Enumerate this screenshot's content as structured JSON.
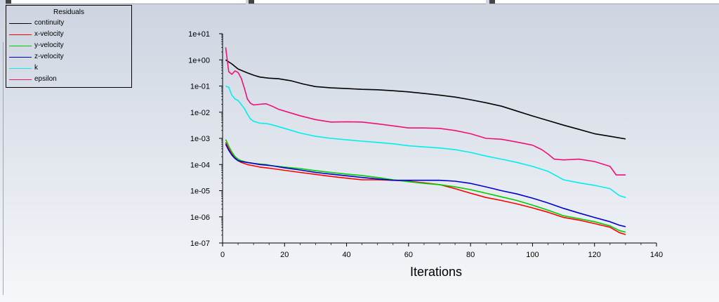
{
  "chart_data": {
    "type": "line",
    "title": "",
    "xlabel": "Iterations",
    "ylabel": "",
    "yscale": "log",
    "xlim": [
      0,
      140
    ],
    "ylim": [
      1e-07,
      10
    ],
    "x_ticks": [
      "0",
      "20",
      "40",
      "60",
      "80",
      "100",
      "120",
      "140"
    ],
    "y_ticks": [
      "1e+01",
      "1e+00",
      "1e-01",
      "1e-02",
      "1e-03",
      "1e-04",
      "1e-05",
      "1e-06",
      "1e-07"
    ],
    "legend": {
      "title": "Residuals",
      "placement": "top-left"
    },
    "series": [
      {
        "name": "continuity",
        "color": "#000000",
        "x": [
          1,
          3,
          5,
          8,
          10,
          12,
          15,
          18,
          22,
          26,
          30,
          35,
          40,
          45,
          50,
          55,
          60,
          65,
          70,
          75,
          80,
          85,
          90,
          95,
          100,
          105,
          110,
          115,
          120,
          125,
          130
        ],
        "y": [
          1.0,
          0.7,
          0.45,
          0.32,
          0.26,
          0.22,
          0.2,
          0.19,
          0.16,
          0.12,
          0.095,
          0.085,
          0.08,
          0.075,
          0.072,
          0.066,
          0.06,
          0.052,
          0.045,
          0.038,
          0.03,
          0.023,
          0.017,
          0.011,
          0.0072,
          0.0048,
          0.0032,
          0.0022,
          0.0015,
          0.0012,
          0.00095
        ]
      },
      {
        "name": "x-velocity",
        "color": "#ff0000",
        "x": [
          1,
          2,
          3,
          4,
          5,
          6,
          8,
          10,
          12,
          14,
          16,
          20,
          25,
          30,
          35,
          40,
          45,
          50,
          55,
          60,
          65,
          70,
          75,
          80,
          85,
          90,
          95,
          100,
          105,
          110,
          115,
          120,
          125,
          128,
          130
        ],
        "y": [
          0.0007,
          0.0004,
          0.00025,
          0.00018,
          0.00014,
          0.00012,
          0.0001,
          9e-05,
          8e-05,
          7.5e-05,
          7e-05,
          6e-05,
          5e-05,
          4.2e-05,
          3.5e-05,
          3e-05,
          2.6e-05,
          2.6e-05,
          2.5e-05,
          2.3e-05,
          2e-05,
          1.7e-05,
          1.2e-05,
          8e-06,
          5.5e-06,
          4.2e-06,
          3.1e-06,
          2.2e-06,
          1.5e-06,
          9.5e-07,
          7.5e-07,
          5.5e-07,
          4e-07,
          2.5e-07,
          2.1e-07
        ]
      },
      {
        "name": "y-velocity",
        "color": "#00cc00",
        "x": [
          1,
          2,
          3,
          4,
          5,
          6,
          8,
          10,
          12,
          14,
          16,
          20,
          25,
          30,
          35,
          40,
          45,
          50,
          55,
          60,
          65,
          70,
          75,
          80,
          85,
          90,
          95,
          100,
          105,
          110,
          115,
          120,
          125,
          128,
          130
        ],
        "y": [
          0.0009,
          0.0005,
          0.0003,
          0.0002,
          0.00016,
          0.00014,
          0.00012,
          0.00011,
          0.000105,
          0.0001,
          9e-05,
          8e-05,
          7e-05,
          5.8e-05,
          5e-05,
          4.3e-05,
          3.8e-05,
          3.2e-05,
          2.6e-05,
          2.2e-05,
          1.9e-05,
          1.7e-05,
          1.4e-05,
          1.1e-05,
          8e-06,
          5.8e-06,
          4.2e-06,
          2.8e-06,
          1.8e-06,
          1.1e-06,
          8.5e-07,
          6.5e-07,
          4.5e-07,
          3e-07,
          2.6e-07
        ]
      },
      {
        "name": "z-velocity",
        "color": "#0000cc",
        "x": [
          1,
          2,
          3,
          4,
          5,
          6,
          8,
          10,
          12,
          14,
          16,
          20,
          25,
          30,
          35,
          40,
          45,
          50,
          55,
          60,
          65,
          70,
          75,
          80,
          85,
          90,
          95,
          100,
          105,
          110,
          115,
          120,
          125,
          128,
          130
        ],
        "y": [
          0.0006,
          0.00035,
          0.00023,
          0.00017,
          0.00014,
          0.00013,
          0.00012,
          0.00011,
          0.0001,
          9.5e-05,
          9e-05,
          7.5e-05,
          6.2e-05,
          5e-05,
          4.3e-05,
          3.7e-05,
          3.2e-05,
          2.8e-05,
          2.5e-05,
          2.5e-05,
          2.5e-05,
          2.5e-05,
          2.3e-05,
          1.9e-05,
          1.4e-05,
          1e-05,
          7.5e-06,
          5.2e-06,
          3.4e-06,
          2.1e-06,
          1.4e-06,
          9.5e-07,
          6.5e-07,
          4.8e-07,
          4.2e-07
        ]
      },
      {
        "name": "k",
        "color": "#00eeee",
        "x": [
          1,
          2,
          3,
          4,
          5,
          6,
          7,
          8,
          9,
          10,
          12,
          14,
          16,
          20,
          25,
          30,
          35,
          40,
          45,
          50,
          55,
          60,
          65,
          70,
          75,
          80,
          85,
          90,
          95,
          100,
          105,
          110,
          115,
          120,
          125,
          128,
          130
        ],
        "y": [
          0.1,
          0.09,
          0.045,
          0.032,
          0.028,
          0.02,
          0.014,
          0.0085,
          0.0055,
          0.0045,
          0.0038,
          0.0037,
          0.0033,
          0.0024,
          0.0016,
          0.0012,
          0.001,
          0.00088,
          0.00078,
          0.0007,
          0.00062,
          0.00052,
          0.00047,
          0.00043,
          0.00037,
          0.00029,
          0.00021,
          0.00016,
          0.00012,
          8.5e-05,
          5.5e-05,
          2.6e-05,
          2e-05,
          1.6e-05,
          1.2e-05,
          6.5e-06,
          5.5e-06
        ]
      },
      {
        "name": "epsilon",
        "color": "#ee1177",
        "x": [
          1,
          2,
          3,
          4,
          5,
          6,
          7,
          8,
          9,
          10,
          12,
          14,
          16,
          18,
          20,
          25,
          30,
          35,
          40,
          45,
          50,
          55,
          60,
          65,
          70,
          75,
          80,
          85,
          90,
          95,
          100,
          103,
          105,
          107,
          110,
          115,
          120,
          125,
          127,
          130
        ],
        "y": [
          3.0,
          0.35,
          0.28,
          0.38,
          0.33,
          0.2,
          0.085,
          0.032,
          0.022,
          0.019,
          0.02,
          0.021,
          0.017,
          0.013,
          0.011,
          0.0073,
          0.0052,
          0.0042,
          0.0043,
          0.0042,
          0.0036,
          0.003,
          0.0025,
          0.0025,
          0.0024,
          0.002,
          0.0015,
          0.001,
          0.00092,
          0.00072,
          0.00055,
          0.00037,
          0.00025,
          0.00016,
          0.00015,
          0.00016,
          0.00013,
          8.5e-05,
          4e-05,
          4e-05
        ]
      }
    ]
  }
}
